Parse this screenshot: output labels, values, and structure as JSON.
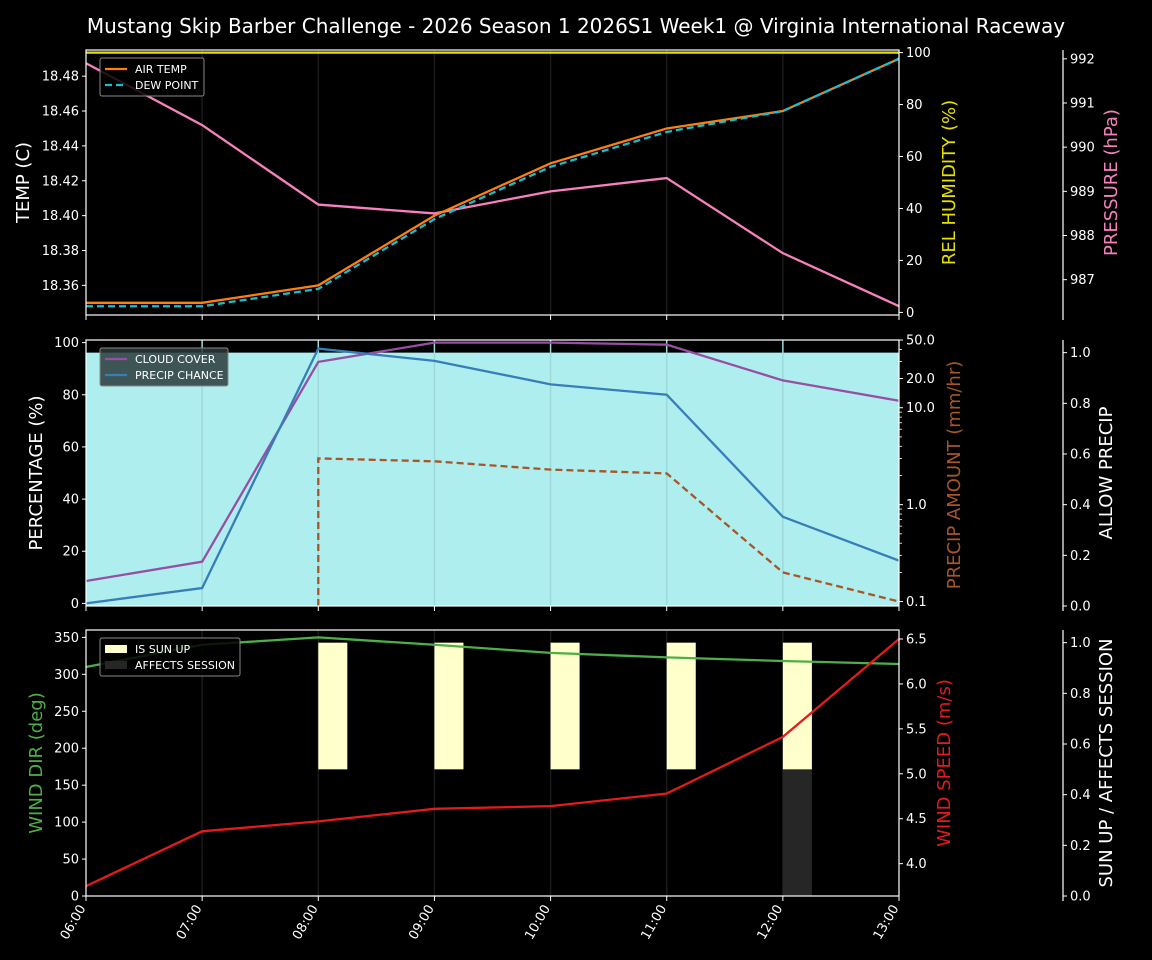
{
  "title": "Mustang Skip Barber Challenge - 2026 Season 1 2026S1 Week1 @ Virginia International Raceway",
  "colors": {
    "background": "#000000",
    "air_temp": "#ff7f0e",
    "dew_point": "#17becf",
    "humidity": "#e5e000",
    "pressure": "#f781bf",
    "cloud_cover": "#984ea3",
    "precip_chance": "#377eb8",
    "precip_amount": "#a65628",
    "allow_precip_fill": "#afeeee",
    "wind_dir": "#4daf4a",
    "wind_speed": "#e41a1c",
    "sun_up": "#ffffcc",
    "affects_session": "#262626"
  },
  "chart_data": [
    {
      "type": "line",
      "panel": "temperature",
      "title": "Mustang Skip Barber Challenge - 2026 Season 1 2026S1 Week1 @ Virginia International Raceway",
      "x": [
        "06:00",
        "07:00",
        "08:00",
        "09:00",
        "10:00",
        "11:00",
        "12:00",
        "13:00"
      ],
      "xlabel": "",
      "ylabel": "TEMP (C)",
      "ylim": [
        18.343,
        18.495
      ],
      "yticks": [
        "18.36",
        "18.38",
        "18.40",
        "18.42",
        "18.44",
        "18.46",
        "18.48"
      ],
      "legend": [
        "AIR TEMP",
        "DEW POINT"
      ],
      "legend_position": "upper left",
      "series": [
        {
          "name": "AIR TEMP",
          "axis": "left",
          "values": [
            18.35,
            18.35,
            18.36,
            18.4,
            18.43,
            18.45,
            18.46,
            18.49
          ]
        },
        {
          "name": "DEW POINT",
          "axis": "left",
          "style": "dashed",
          "values": [
            18.348,
            18.348,
            18.358,
            18.398,
            18.428,
            18.448,
            18.46,
            18.49
          ]
        },
        {
          "name": "REL HUMIDITY (%)",
          "axis": "right1",
          "values": [
            100,
            100,
            100,
            100,
            100,
            100,
            100,
            100
          ]
        },
        {
          "name": "PRESSURE (hPa)",
          "axis": "right2",
          "values": [
            991.9,
            990.5,
            988.7,
            988.5,
            989.0,
            989.3,
            987.6,
            986.4
          ]
        }
      ],
      "right1": {
        "label": "REL HUMIDITY (%)",
        "ylim": [
          -1,
          101
        ],
        "ticks": [
          "0",
          "20",
          "40",
          "60",
          "80",
          "100"
        ]
      },
      "right2": {
        "label": "PRESSURE (hPa)",
        "ylim": [
          986.2,
          992.2
        ],
        "ticks": [
          "987",
          "988",
          "989",
          "990",
          "991",
          "992"
        ]
      }
    },
    {
      "type": "line",
      "panel": "precipitation",
      "x": [
        "06:00",
        "07:00",
        "08:00",
        "09:00",
        "10:00",
        "11:00",
        "12:00",
        "13:00"
      ],
      "ylabel": "PERCENTAGE (%)",
      "ylim": [
        -1,
        101
      ],
      "yticks": [
        "0",
        "20",
        "40",
        "60",
        "80",
        "100"
      ],
      "legend": [
        "CLOUD COVER",
        "PRECIP CHANCE"
      ],
      "legend_position": "upper left",
      "series": [
        {
          "name": "CLOUD COVER",
          "axis": "left",
          "values": [
            8.6,
            16.0,
            92.6,
            100,
            100,
            99.2,
            85.5,
            77.7
          ]
        },
        {
          "name": "PRECIP CHANCE",
          "axis": "left",
          "values": [
            0,
            5.9,
            97.7,
            93.0,
            84.0,
            80.0,
            33.2,
            16.4
          ]
        },
        {
          "name": "PRECIP AMOUNT (mm/hr)",
          "axis": "right1",
          "style": "dashed",
          "values": [
            0,
            0,
            3.0,
            2.8,
            2.3,
            2.1,
            0.2,
            0.1
          ]
        },
        {
          "name": "ALLOW PRECIP",
          "axis": "right2",
          "style": "fill",
          "values": [
            1,
            1,
            1,
            1,
            1,
            1,
            1,
            1
          ]
        }
      ],
      "right1": {
        "label": "PRECIP AMOUNT (mm/hr)",
        "scale": "log",
        "ylim": [
          0.09,
          50
        ],
        "ticks": [
          "0.1",
          "1.0",
          "10.0",
          "20.0",
          "50.0"
        ]
      },
      "right2": {
        "label": "ALLOW PRECIP",
        "ylim": [
          0,
          1.05
        ],
        "ticks": [
          "0.0",
          "0.2",
          "0.4",
          "0.6",
          "0.8",
          "1.0"
        ]
      }
    },
    {
      "type": "line",
      "panel": "wind",
      "x": [
        "06:00",
        "07:00",
        "08:00",
        "09:00",
        "10:00",
        "11:00",
        "12:00",
        "13:00"
      ],
      "xticks": [
        "06:00",
        "07:00",
        "08:00",
        "09:00",
        "10:00",
        "11:00",
        "12:00",
        "13:00"
      ],
      "ylabel": "WIND DIR (deg)",
      "ylim": [
        0,
        360
      ],
      "yticks": [
        "0",
        "50",
        "100",
        "150",
        "200",
        "250",
        "300",
        "350"
      ],
      "legend": [
        "IS SUN UP",
        "AFFECTS SESSION"
      ],
      "legend_position": "upper left",
      "series": [
        {
          "name": "WIND DIR (deg)",
          "axis": "left",
          "values": [
            310,
            340,
            350,
            340,
            329,
            323,
            318,
            314
          ]
        },
        {
          "name": "WIND SPEED (m/s)",
          "axis": "right1",
          "values": [
            3.75,
            4.36,
            4.47,
            4.61,
            4.64,
            4.78,
            5.41,
            6.5
          ]
        },
        {
          "name": "IS SUN UP",
          "axis": "right2",
          "type": "bar",
          "values": [
            0,
            0,
            1,
            1,
            1,
            1,
            1,
            0
          ]
        },
        {
          "name": "AFFECTS SESSION",
          "axis": "right2",
          "type": "bar",
          "values": [
            0,
            0,
            0,
            0,
            0,
            0,
            1,
            0
          ]
        }
      ],
      "right1": {
        "label": "WIND SPEED (m/s)",
        "ylim": [
          3.64,
          6.6
        ],
        "ticks": [
          "4.0",
          "4.5",
          "5.0",
          "5.5",
          "6.0",
          "6.5"
        ]
      },
      "right2": {
        "label": "SUN UP / AFFECTS SESSION",
        "ylim": [
          0,
          1.05
        ],
        "ticks": [
          "0.0",
          "0.2",
          "0.4",
          "0.6",
          "0.8",
          "1.0"
        ]
      }
    }
  ]
}
